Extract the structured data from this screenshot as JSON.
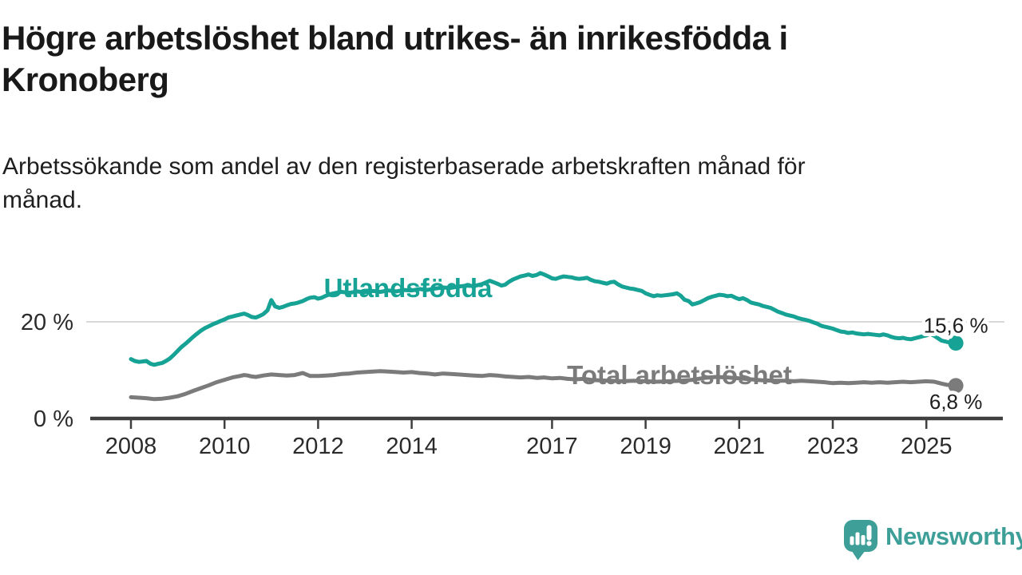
{
  "header": {
    "title": "Högre arbetslöshet bland utrikes- än inrikesfödda i\nKronoberg",
    "subtitle": "Arbetssökande som andel av den registerbaserade arbetskraften månad för\nmånad."
  },
  "branding": {
    "logo_text": "Newsworthy",
    "logo_icon": "newsworthy-speech-bubble-bar-chart-icon",
    "brand_color": "#3E9F98"
  },
  "colors": {
    "title_text": "#191919",
    "axis": "#3F3F3F",
    "gridline": "#D9D9D9",
    "tick_label": "#2B2B2B",
    "annotation_text": "#1E1E1E"
  },
  "chart_data": {
    "type": "line",
    "unit": "%",
    "grid": "single horizontal gridline at 20 %",
    "legend_position": "inline labels on lines",
    "x_axis": {
      "range": [
        2007.1,
        2026.9
      ],
      "ticks": [
        2008,
        2010,
        2012,
        2014,
        2017,
        2019,
        2021,
        2023,
        2025
      ],
      "tick_labels": [
        "2008",
        "2010",
        "2012",
        "2014",
        "2017",
        "2019",
        "2021",
        "2023",
        "2025"
      ]
    },
    "y_axis": {
      "range": [
        0,
        33
      ],
      "ticks": [
        0,
        20
      ],
      "tick_labels": [
        "0 %",
        "20 %"
      ],
      "gridlines": [
        20
      ]
    },
    "series": [
      {
        "name": "Utlandsfödda",
        "color": "#16A294",
        "label_color": "#16A294",
        "end_label": "15,6 %",
        "end_value": 15.6,
        "points": [
          [
            2008,
            12.3
          ],
          [
            2008.08,
            11.9
          ],
          [
            2008.17,
            11.7
          ],
          [
            2008.25,
            11.8
          ],
          [
            2008.33,
            11.9
          ],
          [
            2008.42,
            11.3
          ],
          [
            2008.5,
            11.1
          ],
          [
            2008.58,
            11.3
          ],
          [
            2008.67,
            11.5
          ],
          [
            2008.75,
            11.9
          ],
          [
            2008.83,
            12.4
          ],
          [
            2008.92,
            13.2
          ],
          [
            2009,
            14
          ],
          [
            2009.08,
            14.8
          ],
          [
            2009.17,
            15.5
          ],
          [
            2009.25,
            16.2
          ],
          [
            2009.33,
            16.9
          ],
          [
            2009.42,
            17.6
          ],
          [
            2009.5,
            18.2
          ],
          [
            2009.58,
            18.7
          ],
          [
            2009.67,
            19.1
          ],
          [
            2009.75,
            19.5
          ],
          [
            2009.83,
            19.8
          ],
          [
            2009.92,
            20.2
          ],
          [
            2010,
            20.5
          ],
          [
            2010.08,
            20.9
          ],
          [
            2010.17,
            21.1
          ],
          [
            2010.25,
            21.3
          ],
          [
            2010.33,
            21.5
          ],
          [
            2010.42,
            21.7
          ],
          [
            2010.5,
            21.4
          ],
          [
            2010.58,
            21
          ],
          [
            2010.67,
            20.9
          ],
          [
            2010.75,
            21.2
          ],
          [
            2010.83,
            21.6
          ],
          [
            2010.92,
            22.4
          ],
          [
            2011,
            24.5
          ],
          [
            2011.08,
            23.2
          ],
          [
            2011.17,
            22.9
          ],
          [
            2011.25,
            23.1
          ],
          [
            2011.33,
            23.4
          ],
          [
            2011.42,
            23.7
          ],
          [
            2011.5,
            23.8
          ],
          [
            2011.58,
            24
          ],
          [
            2011.67,
            24.3
          ],
          [
            2011.75,
            24.7
          ],
          [
            2011.83,
            25
          ],
          [
            2011.92,
            25.1
          ],
          [
            2012,
            24.8
          ],
          [
            2012.08,
            25
          ],
          [
            2012.17,
            25.4
          ],
          [
            2012.25,
            25.7
          ],
          [
            2012.33,
            25.9
          ],
          [
            2012.5,
            26.2
          ],
          [
            2012.67,
            26
          ],
          [
            2012.83,
            26.3
          ],
          [
            2013,
            26.1
          ],
          [
            2013.17,
            26.4
          ],
          [
            2013.33,
            26.2
          ],
          [
            2013.5,
            26.5
          ],
          [
            2013.67,
            26.3
          ],
          [
            2013.83,
            26.6
          ],
          [
            2014,
            26.5
          ],
          [
            2014.17,
            26.8
          ],
          [
            2014.33,
            26.6
          ],
          [
            2014.5,
            26.9
          ],
          [
            2014.67,
            27.1
          ],
          [
            2014.83,
            27
          ],
          [
            2015,
            27.3
          ],
          [
            2015.17,
            27.5
          ],
          [
            2015.33,
            27.4
          ],
          [
            2015.5,
            27.8
          ],
          [
            2015.67,
            28.5
          ],
          [
            2015.83,
            27.9
          ],
          [
            2015.92,
            27.5
          ],
          [
            2016,
            27.7
          ],
          [
            2016.08,
            28.3
          ],
          [
            2016.17,
            28.8
          ],
          [
            2016.25,
            29.1
          ],
          [
            2016.33,
            29.4
          ],
          [
            2016.42,
            29.6
          ],
          [
            2016.5,
            29.8
          ],
          [
            2016.58,
            29.5
          ],
          [
            2016.67,
            29.7
          ],
          [
            2016.75,
            30.1
          ],
          [
            2016.83,
            29.8
          ],
          [
            2016.92,
            29.4
          ],
          [
            2017,
            29
          ],
          [
            2017.08,
            28.9
          ],
          [
            2017.17,
            29.2
          ],
          [
            2017.25,
            29.4
          ],
          [
            2017.33,
            29.3
          ],
          [
            2017.42,
            29.2
          ],
          [
            2017.5,
            29
          ],
          [
            2017.58,
            28.9
          ],
          [
            2017.67,
            29
          ],
          [
            2017.75,
            29.1
          ],
          [
            2017.83,
            28.7
          ],
          [
            2017.92,
            28.4
          ],
          [
            2018,
            28.3
          ],
          [
            2018.08,
            28.1
          ],
          [
            2018.17,
            27.9
          ],
          [
            2018.25,
            28.2
          ],
          [
            2018.33,
            28.3
          ],
          [
            2018.42,
            27.7
          ],
          [
            2018.5,
            27.3
          ],
          [
            2018.58,
            27.1
          ],
          [
            2018.67,
            26.9
          ],
          [
            2018.75,
            26.8
          ],
          [
            2018.83,
            26.6
          ],
          [
            2018.92,
            26.4
          ],
          [
            2019,
            25.9
          ],
          [
            2019.08,
            25.6
          ],
          [
            2019.17,
            25.3
          ],
          [
            2019.25,
            25.5
          ],
          [
            2019.33,
            25.4
          ],
          [
            2019.42,
            25.5
          ],
          [
            2019.5,
            25.6
          ],
          [
            2019.58,
            25.7
          ],
          [
            2019.67,
            25.9
          ],
          [
            2019.75,
            25.4
          ],
          [
            2019.83,
            24.6
          ],
          [
            2019.92,
            24.3
          ],
          [
            2020,
            23.6
          ],
          [
            2020.08,
            23.8
          ],
          [
            2020.17,
            24.1
          ],
          [
            2020.25,
            24.5
          ],
          [
            2020.33,
            24.9
          ],
          [
            2020.42,
            25.2
          ],
          [
            2020.5,
            25.4
          ],
          [
            2020.58,
            25.6
          ],
          [
            2020.67,
            25.5
          ],
          [
            2020.75,
            25.3
          ],
          [
            2020.83,
            25.4
          ],
          [
            2020.92,
            25
          ],
          [
            2021,
            24.7
          ],
          [
            2021.08,
            24.9
          ],
          [
            2021.17,
            24.5
          ],
          [
            2021.25,
            24
          ],
          [
            2021.33,
            23.8
          ],
          [
            2021.42,
            23.6
          ],
          [
            2021.5,
            23.3
          ],
          [
            2021.58,
            23.1
          ],
          [
            2021.67,
            22.9
          ],
          [
            2021.75,
            22.5
          ],
          [
            2021.83,
            22.1
          ],
          [
            2021.92,
            21.8
          ],
          [
            2022,
            21.5
          ],
          [
            2022.08,
            21.3
          ],
          [
            2022.17,
            21.1
          ],
          [
            2022.25,
            20.8
          ],
          [
            2022.33,
            20.6
          ],
          [
            2022.42,
            20.4
          ],
          [
            2022.5,
            20.2
          ],
          [
            2022.58,
            19.9
          ],
          [
            2022.67,
            19.6
          ],
          [
            2022.75,
            19.2
          ],
          [
            2022.83,
            19
          ],
          [
            2022.92,
            18.8
          ],
          [
            2023,
            18.6
          ],
          [
            2023.08,
            18.3
          ],
          [
            2023.17,
            18
          ],
          [
            2023.25,
            17.9
          ],
          [
            2023.33,
            17.7
          ],
          [
            2023.42,
            17.8
          ],
          [
            2023.5,
            17.6
          ],
          [
            2023.58,
            17.5
          ],
          [
            2023.67,
            17.4
          ],
          [
            2023.75,
            17.5
          ],
          [
            2023.83,
            17.4
          ],
          [
            2023.92,
            17.3
          ],
          [
            2024,
            17.2
          ],
          [
            2024.08,
            17.4
          ],
          [
            2024.17,
            17.2
          ],
          [
            2024.25,
            16.9
          ],
          [
            2024.33,
            16.7
          ],
          [
            2024.42,
            16.6
          ],
          [
            2024.5,
            16.7
          ],
          [
            2024.58,
            16.5
          ],
          [
            2024.67,
            16.4
          ],
          [
            2024.75,
            16.6
          ],
          [
            2024.83,
            16.8
          ],
          [
            2024.92,
            17
          ],
          [
            2025,
            17.2
          ],
          [
            2025.08,
            17.5
          ],
          [
            2025.17,
            17.1
          ],
          [
            2025.25,
            16.6
          ],
          [
            2025.33,
            16.1
          ],
          [
            2025.42,
            15.9
          ],
          [
            2025.5,
            15.7
          ],
          [
            2025.63,
            15.6
          ]
        ]
      },
      {
        "name": "Total arbetslöshet",
        "color": "#7B7B7B",
        "label_color": "#7B7B7B",
        "end_label": "6,8 %",
        "end_value": 6.8,
        "points": [
          [
            2008,
            4.4
          ],
          [
            2008.17,
            4.3
          ],
          [
            2008.33,
            4.2
          ],
          [
            2008.5,
            4
          ],
          [
            2008.67,
            4.1
          ],
          [
            2008.83,
            4.3
          ],
          [
            2009,
            4.6
          ],
          [
            2009.17,
            5.1
          ],
          [
            2009.33,
            5.7
          ],
          [
            2009.5,
            6.3
          ],
          [
            2009.67,
            6.9
          ],
          [
            2009.83,
            7.5
          ],
          [
            2010,
            8
          ],
          [
            2010.17,
            8.5
          ],
          [
            2010.33,
            8.8
          ],
          [
            2010.42,
            9
          ],
          [
            2010.5,
            8.9
          ],
          [
            2010.58,
            8.7
          ],
          [
            2010.67,
            8.6
          ],
          [
            2010.83,
            8.9
          ],
          [
            2011,
            9.1
          ],
          [
            2011.17,
            9
          ],
          [
            2011.33,
            8.9
          ],
          [
            2011.5,
            9
          ],
          [
            2011.67,
            9.4
          ],
          [
            2011.75,
            9.1
          ],
          [
            2011.83,
            8.8
          ],
          [
            2012,
            8.8
          ],
          [
            2012.17,
            8.9
          ],
          [
            2012.33,
            9
          ],
          [
            2012.5,
            9.2
          ],
          [
            2012.67,
            9.3
          ],
          [
            2012.83,
            9.5
          ],
          [
            2013,
            9.6
          ],
          [
            2013.17,
            9.7
          ],
          [
            2013.33,
            9.8
          ],
          [
            2013.5,
            9.7
          ],
          [
            2013.67,
            9.6
          ],
          [
            2013.83,
            9.5
          ],
          [
            2014,
            9.6
          ],
          [
            2014.17,
            9.4
          ],
          [
            2014.33,
            9.3
          ],
          [
            2014.5,
            9.1
          ],
          [
            2014.67,
            9.3
          ],
          [
            2014.83,
            9.2
          ],
          [
            2015,
            9.1
          ],
          [
            2015.17,
            9
          ],
          [
            2015.33,
            8.9
          ],
          [
            2015.5,
            8.8
          ],
          [
            2015.67,
            9
          ],
          [
            2015.83,
            8.9
          ],
          [
            2016,
            8.7
          ],
          [
            2016.17,
            8.6
          ],
          [
            2016.33,
            8.5
          ],
          [
            2016.5,
            8.6
          ],
          [
            2016.67,
            8.4
          ],
          [
            2016.83,
            8.5
          ],
          [
            2017,
            8.3
          ],
          [
            2017.17,
            8.4
          ],
          [
            2017.33,
            8.2
          ],
          [
            2017.5,
            8.1
          ],
          [
            2017.67,
            8.2
          ],
          [
            2017.83,
            8
          ],
          [
            2018,
            7.9
          ],
          [
            2018.25,
            7.8
          ],
          [
            2018.5,
            7.7
          ],
          [
            2018.75,
            7.8
          ],
          [
            2019,
            7.7
          ],
          [
            2019.25,
            7.6
          ],
          [
            2019.5,
            7.7
          ],
          [
            2019.75,
            7.8
          ],
          [
            2020,
            8
          ],
          [
            2020.25,
            8.4
          ],
          [
            2020.5,
            8.6
          ],
          [
            2020.75,
            8.5
          ],
          [
            2021,
            8.3
          ],
          [
            2021.25,
            8.1
          ],
          [
            2021.5,
            7.9
          ],
          [
            2021.75,
            7.8
          ],
          [
            2022,
            7.8
          ],
          [
            2022.17,
            7.7
          ],
          [
            2022.33,
            7.8
          ],
          [
            2022.5,
            7.7
          ],
          [
            2022.67,
            7.6
          ],
          [
            2022.83,
            7.5
          ],
          [
            2023,
            7.3
          ],
          [
            2023.17,
            7.4
          ],
          [
            2023.33,
            7.3
          ],
          [
            2023.5,
            7.4
          ],
          [
            2023.67,
            7.5
          ],
          [
            2023.83,
            7.4
          ],
          [
            2024,
            7.5
          ],
          [
            2024.17,
            7.4
          ],
          [
            2024.33,
            7.5
          ],
          [
            2024.5,
            7.6
          ],
          [
            2024.67,
            7.5
          ],
          [
            2024.83,
            7.6
          ],
          [
            2025,
            7.7
          ],
          [
            2025.17,
            7.6
          ],
          [
            2025.25,
            7.4
          ],
          [
            2025.33,
            7.2
          ],
          [
            2025.42,
            7
          ],
          [
            2025.5,
            6.9
          ],
          [
            2025.63,
            6.8
          ]
        ]
      }
    ]
  }
}
